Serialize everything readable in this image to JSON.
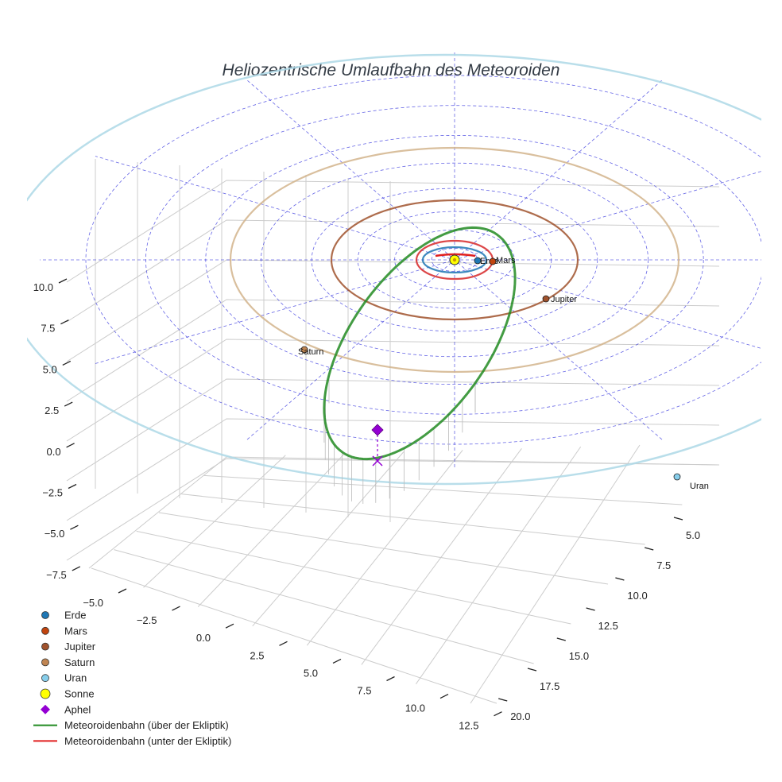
{
  "chart_data": {
    "type": "line",
    "projection": "3d",
    "title": "Heliozentrische Umlaufbahn des Meteoroiden",
    "grid": true,
    "legend_position": "bottom-left",
    "axes": {
      "x": {
        "range": [
          -5,
          12.5
        ],
        "ticks": [
          "−5.0",
          "−2.5",
          "0.0",
          "2.5",
          "5.0",
          "7.5",
          "10.0",
          "12.5"
        ]
      },
      "y": {
        "range": [
          5,
          20
        ],
        "ticks": [
          "5.0",
          "7.5",
          "10.0",
          "12.5",
          "15.0",
          "17.5",
          "20.0"
        ]
      },
      "z": {
        "range": [
          -7.5,
          10
        ],
        "ticks": [
          "10.0",
          "7.5",
          "5.0",
          "2.5",
          "0.0",
          "−2.5",
          "−5.0",
          "−7.5"
        ]
      }
    },
    "colors": {
      "grid": "#cccccc",
      "ecliptic_grid": "#3333dd",
      "meteoroid_above": "#228b22",
      "meteoroid_below": "#e02020",
      "aphel": "#9400d3",
      "axis_tick": "#222222",
      "title": "#333b45"
    },
    "planets": [
      {
        "name": "Erde",
        "label": "Erde",
        "semi_major_axis_au": 1.0,
        "orbit_color": "#1f77b4",
        "marker_color": "#1f77b4"
      },
      {
        "name": "Mars",
        "label": "Mars",
        "semi_major_axis_au": 1.52,
        "orbit_color": "#d62728",
        "marker_color": "#c1440e"
      },
      {
        "name": "Jupiter",
        "label": "Jupiter",
        "semi_major_axis_au": 5.2,
        "orbit_color": "#a0522d",
        "marker_color": "#a0522d"
      },
      {
        "name": "Saturn",
        "label": "Saturn",
        "semi_major_axis_au": 9.58,
        "orbit_color": "#d2b48c",
        "marker_color": "#c08552"
      },
      {
        "name": "Uran",
        "label": "Uran",
        "semi_major_axis_au": 19.2,
        "orbit_color": "#add8e6",
        "marker_color": "#87ceeb"
      }
    ],
    "sun": {
      "label": "Sonne",
      "color": "#ffff00"
    },
    "aphel": {
      "label": "Aphel",
      "z": 2.4
    },
    "series": [
      {
        "name": "Meteoroidenbahn (über der Ekliptik)",
        "color": "#228b22",
        "position": "above"
      },
      {
        "name": "Meteoroidenbahn (unter der Ekliptik)",
        "color": "#e02020",
        "position": "below"
      }
    ],
    "legend": [
      {
        "label": "Erde",
        "marker": "circle",
        "color": "#1f77b4"
      },
      {
        "label": "Mars",
        "marker": "circle",
        "color": "#c1440e"
      },
      {
        "label": "Jupiter",
        "marker": "circle",
        "color": "#a0522d"
      },
      {
        "label": "Saturn",
        "marker": "circle",
        "color": "#c08552"
      },
      {
        "label": "Uran",
        "marker": "circle",
        "color": "#87ceeb"
      },
      {
        "label": "Sonne",
        "marker": "circle-large",
        "color": "#ffff00"
      },
      {
        "label": "Aphel",
        "marker": "diamond",
        "color": "#9400d3"
      },
      {
        "label": "Meteoroidenbahn (über der Ekliptik)",
        "marker": "line",
        "color": "#228b22"
      },
      {
        "label": "Meteoroidenbahn (unter der Ekliptik)",
        "marker": "line",
        "color": "#e02020"
      }
    ]
  }
}
